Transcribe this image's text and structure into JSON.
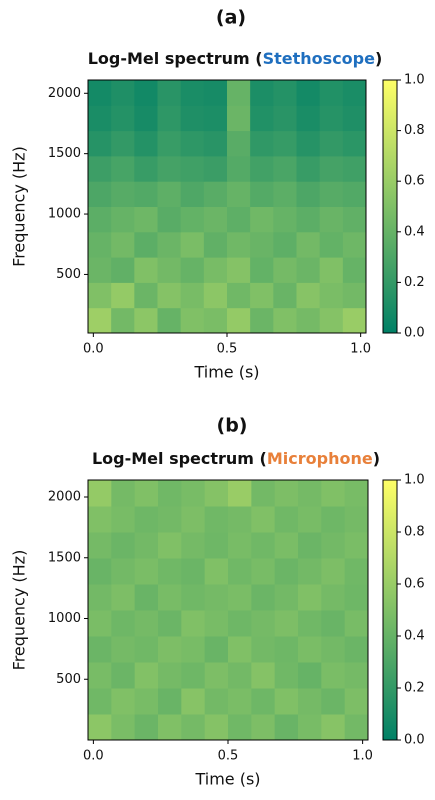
{
  "chart_data": [
    {
      "type": "heatmap",
      "panel_label": "(a)",
      "title": [
        "Log-Mel spectrum (",
        "Stethoscope",
        ")"
      ],
      "title_highlight_color": "#1f6fbf",
      "x_label": "Time (s)",
      "y_label": "Frequency (Hz)",
      "xlim": [
        -0.02,
        1.02
      ],
      "xticks": [
        {
          "value": 0,
          "label": "0.0"
        },
        {
          "value": 0.5,
          "label": "0.5"
        },
        {
          "value": 1,
          "label": "1.0"
        }
      ],
      "ylim": [
        15,
        2110
      ],
      "yticks": [
        500,
        1000,
        1500,
        2000
      ],
      "colormap": [
        "#008066",
        "#ffff66"
      ],
      "clim": [
        0,
        1
      ],
      "colorbar_ticks": [
        {
          "value": 0,
          "label": "0.0"
        },
        {
          "value": 0.2,
          "label": "0.2"
        },
        {
          "value": 0.4,
          "label": "0.4"
        },
        {
          "value": 0.6,
          "label": "0.6"
        },
        {
          "value": 0.8,
          "label": "0.8"
        },
        {
          "value": 1,
          "label": "1.0"
        }
      ],
      "z": [
        [
          0.62,
          0.45,
          0.55,
          0.4,
          0.5,
          0.48,
          0.58,
          0.42,
          0.5,
          0.46,
          0.52,
          0.6
        ],
        [
          0.5,
          0.58,
          0.42,
          0.52,
          0.47,
          0.55,
          0.44,
          0.5,
          0.41,
          0.53,
          0.48,
          0.45
        ],
        [
          0.42,
          0.38,
          0.5,
          0.45,
          0.4,
          0.47,
          0.52,
          0.39,
          0.46,
          0.42,
          0.5,
          0.4
        ],
        [
          0.4,
          0.45,
          0.36,
          0.42,
          0.48,
          0.38,
          0.44,
          0.41,
          0.37,
          0.45,
          0.39,
          0.43
        ],
        [
          0.36,
          0.4,
          0.43,
          0.35,
          0.39,
          0.42,
          0.37,
          0.44,
          0.4,
          0.36,
          0.41,
          0.38
        ],
        [
          0.3,
          0.34,
          0.32,
          0.37,
          0.31,
          0.35,
          0.4,
          0.33,
          0.36,
          0.3,
          0.34,
          0.32
        ],
        [
          0.24,
          0.28,
          0.22,
          0.27,
          0.25,
          0.23,
          0.33,
          0.26,
          0.29,
          0.22,
          0.27,
          0.25
        ],
        [
          0.15,
          0.2,
          0.14,
          0.22,
          0.18,
          0.16,
          0.35,
          0.19,
          0.21,
          0.15,
          0.2,
          0.17
        ],
        [
          0.1,
          0.14,
          0.09,
          0.18,
          0.12,
          0.11,
          0.42,
          0.13,
          0.16,
          0.1,
          0.15,
          0.12
        ],
        [
          0.08,
          0.12,
          0.07,
          0.16,
          0.1,
          0.09,
          0.4,
          0.11,
          0.14,
          0.08,
          0.13,
          0.1
        ]
      ]
    },
    {
      "type": "heatmap",
      "panel_label": "(b)",
      "title": [
        "Log-Mel spectrum (",
        "Microphone",
        ")"
      ],
      "title_highlight_color": "#e8803a",
      "x_label": "Time (s)",
      "y_label": "Frequency (Hz)",
      "xlim": [
        -0.02,
        1.02
      ],
      "xticks": [
        {
          "value": 0,
          "label": "0.0"
        },
        {
          "value": 0.5,
          "label": "0.5"
        },
        {
          "value": 1,
          "label": "1.0"
        }
      ],
      "ylim": [
        0,
        2140
      ],
      "yticks": [
        500,
        1000,
        1500,
        2000
      ],
      "colormap": [
        "#008066",
        "#ffff66"
      ],
      "clim": [
        0,
        1
      ],
      "colorbar_ticks": [
        {
          "value": 0,
          "label": "0.0"
        },
        {
          "value": 0.2,
          "label": "0.2"
        },
        {
          "value": 0.4,
          "label": "0.4"
        },
        {
          "value": 0.6,
          "label": "0.6"
        },
        {
          "value": 0.8,
          "label": "0.8"
        },
        {
          "value": 1,
          "label": "1.0"
        }
      ],
      "z": [
        [
          0.55,
          0.48,
          0.42,
          0.5,
          0.46,
          0.52,
          0.44,
          0.49,
          0.41,
          0.47,
          0.53,
          0.45
        ],
        [
          0.44,
          0.5,
          0.47,
          0.41,
          0.53,
          0.45,
          0.48,
          0.43,
          0.5,
          0.46,
          0.42,
          0.49
        ],
        [
          0.47,
          0.42,
          0.51,
          0.46,
          0.43,
          0.49,
          0.45,
          0.52,
          0.44,
          0.4,
          0.48,
          0.46
        ],
        [
          0.42,
          0.46,
          0.44,
          0.49,
          0.47,
          0.41,
          0.5,
          0.45,
          0.43,
          0.48,
          0.45,
          0.42
        ],
        [
          0.48,
          0.43,
          0.46,
          0.42,
          0.5,
          0.47,
          0.43,
          0.46,
          0.49,
          0.44,
          0.41,
          0.47
        ],
        [
          0.45,
          0.49,
          0.41,
          0.47,
          0.44,
          0.46,
          0.48,
          0.42,
          0.45,
          0.5,
          0.46,
          0.43
        ],
        [
          0.41,
          0.45,
          0.48,
          0.44,
          0.42,
          0.5,
          0.44,
          0.47,
          0.42,
          0.45,
          0.49,
          0.44
        ],
        [
          0.46,
          0.42,
          0.45,
          0.5,
          0.46,
          0.43,
          0.47,
          0.44,
          0.48,
          0.42,
          0.45,
          0.48
        ],
        [
          0.5,
          0.47,
          0.43,
          0.45,
          0.49,
          0.44,
          0.46,
          0.5,
          0.44,
          0.47,
          0.43,
          0.46
        ],
        [
          0.58,
          0.46,
          0.5,
          0.44,
          0.47,
          0.52,
          0.6,
          0.45,
          0.49,
          0.46,
          0.5,
          0.47
        ]
      ]
    }
  ]
}
